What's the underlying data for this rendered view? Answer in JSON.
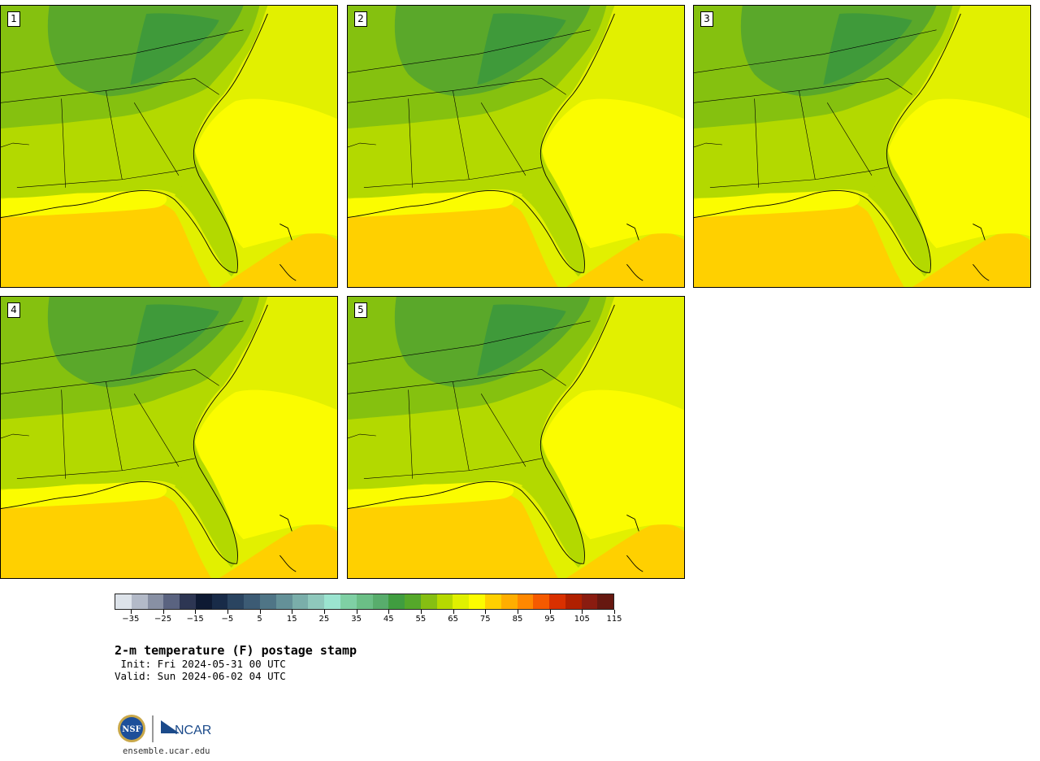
{
  "panels": [
    {
      "label": "1"
    },
    {
      "label": "2"
    },
    {
      "label": "3"
    },
    {
      "label": "4"
    },
    {
      "label": "5"
    }
  ],
  "map_colors": {
    "gulf_warm": "#ffd000",
    "gulf_warmest": "#ffc800",
    "ocean_warm": "#fbfc00",
    "ocean_mild": "#e2f000",
    "land_warm": "#b3d900",
    "land_mild": "#85c10f",
    "land_cool": "#5aa82a",
    "land_cold": "#3f9a3a",
    "boundary": "#000000"
  },
  "colorbar": {
    "colors": [
      "#dde3ea",
      "#b3bac8",
      "#8890a4",
      "#5a6380",
      "#2d3653",
      "#0e1a33",
      "#182b48",
      "#2a4460",
      "#3c5b74",
      "#4f7586",
      "#649198",
      "#7aaeaa",
      "#8fc8bc",
      "#9be4d0",
      "#7fd0a4",
      "#6bbf86",
      "#58ad6c",
      "#409d40",
      "#55a82a",
      "#86bf12",
      "#b6d900",
      "#e0f000",
      "#fcfc00",
      "#ffd000",
      "#ffae00",
      "#ff8800",
      "#f55a00",
      "#d93000",
      "#b02000",
      "#8a1c10",
      "#661810"
    ],
    "tick_labels": [
      "−35",
      "−25",
      "−15",
      "−5",
      "5",
      "15",
      "25",
      "35",
      "45",
      "55",
      "65",
      "75",
      "85",
      "95",
      "105",
      "115"
    ]
  },
  "title": "2-m temperature (F) postage stamp",
  "init_text": " Init: Fri 2024-05-31 00 UTC",
  "valid_text": "Valid: Sun 2024-06-02 04 UTC",
  "logos": {
    "nsf": "NSF",
    "ncar": "NCAR"
  },
  "url": "ensemble.ucar.edu"
}
